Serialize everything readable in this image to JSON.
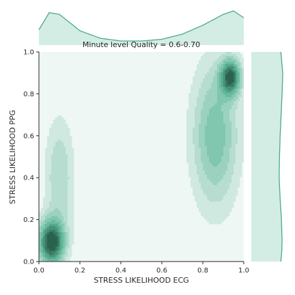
{
  "chart_data": {
    "type": "heatmap",
    "subtype": "kde-jointplot",
    "title": "Minute level Quality = 0.6-0.70",
    "xlabel": "STRESS LIKELIHOOD ECG",
    "ylabel": "STRESS LIKELIHOOD PPG",
    "xlim": [
      0,
      1
    ],
    "ylim": [
      0,
      1
    ],
    "xticks": [
      "0.0",
      "0.2",
      "0.4",
      "0.6",
      "0.8",
      "1.0"
    ],
    "yticks": [
      "0.0",
      "0.2",
      "0.4",
      "0.6",
      "0.8",
      "1.0"
    ],
    "grid": false,
    "density_levels": 10,
    "colors": {
      "light": "#eaf5f1",
      "mid": "#5ab495",
      "dark": "#1d4a3a",
      "marginal_line": "#4aaa87",
      "marginal_fill": "#d3ede4"
    },
    "density_peaks": [
      {
        "x": 0.06,
        "y": 0.09,
        "sx": 0.045,
        "sy": 0.075,
        "weight": 1.0
      },
      {
        "x": 0.1,
        "y": 0.4,
        "sx": 0.05,
        "sy": 0.2,
        "weight": 0.3
      },
      {
        "x": 0.935,
        "y": 0.88,
        "sx": 0.035,
        "sy": 0.06,
        "weight": 0.85
      },
      {
        "x": 0.86,
        "y": 0.6,
        "sx": 0.08,
        "sy": 0.24,
        "weight": 0.48
      }
    ],
    "marginal_x": {
      "x": [
        0.0,
        0.05,
        0.1,
        0.2,
        0.3,
        0.4,
        0.5,
        0.6,
        0.7,
        0.8,
        0.9,
        0.95,
        1.0
      ],
      "density": [
        0.45,
        0.95,
        0.9,
        0.42,
        0.2,
        0.12,
        0.12,
        0.17,
        0.32,
        0.58,
        0.9,
        1.0,
        0.8
      ]
    },
    "marginal_y": {
      "y": [
        0.0,
        0.05,
        0.1,
        0.2,
        0.3,
        0.4,
        0.5,
        0.6,
        0.7,
        0.8,
        0.9,
        1.0
      ],
      "density": [
        0.9,
        0.93,
        0.94,
        0.92,
        0.88,
        0.85,
        0.86,
        0.88,
        0.91,
        0.94,
        0.96,
        0.9
      ]
    }
  }
}
